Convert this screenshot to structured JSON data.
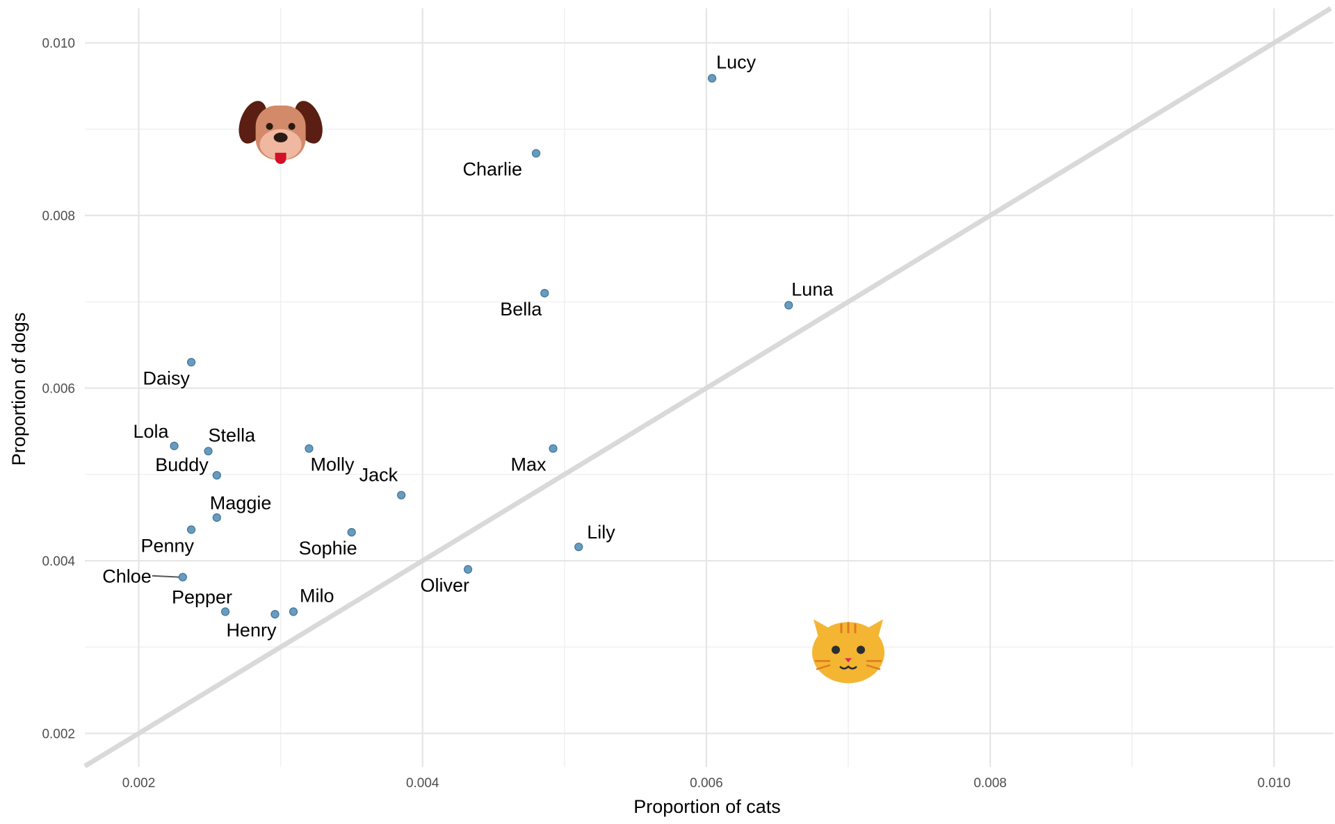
{
  "chart_data": {
    "type": "scatter",
    "title": "",
    "xlabel": "Proportion of cats",
    "ylabel": "Proportion of dogs",
    "xlim": [
      0.00162,
      0.01042
    ],
    "ylim": [
      0.00161,
      0.0104
    ],
    "x_ticks": [
      "0.002",
      "0.004",
      "0.006",
      "0.008",
      "0.010"
    ],
    "y_ticks": [
      "0.002",
      "0.004",
      "0.006",
      "0.008",
      "0.010"
    ],
    "grid": true,
    "reference_line": {
      "type": "identity",
      "label": "",
      "color": "#d9d9d9"
    },
    "point_color": "#5b94b8",
    "icons": [
      {
        "name": "dog-face-icon",
        "glyph": "🐶",
        "x": 0.003,
        "y": 0.009
      },
      {
        "name": "cat-face-icon",
        "glyph": "🐱",
        "x": 0.007,
        "y": 0.003
      }
    ],
    "points": [
      {
        "name": "Lucy",
        "x": 0.00604,
        "y": 0.00959
      },
      {
        "name": "Charlie",
        "x": 0.0048,
        "y": 0.00872
      },
      {
        "name": "Bella",
        "x": 0.00486,
        "y": 0.0071
      },
      {
        "name": "Luna",
        "x": 0.00658,
        "y": 0.00696
      },
      {
        "name": "Daisy",
        "x": 0.00237,
        "y": 0.0063
      },
      {
        "name": "Lola",
        "x": 0.00225,
        "y": 0.00533
      },
      {
        "name": "Stella",
        "x": 0.00249,
        "y": 0.00527
      },
      {
        "name": "Buddy",
        "x": 0.00255,
        "y": 0.00499
      },
      {
        "name": "Molly",
        "x": 0.0032,
        "y": 0.0053
      },
      {
        "name": "Max",
        "x": 0.00492,
        "y": 0.0053
      },
      {
        "name": "Maggie",
        "x": 0.00255,
        "y": 0.0045
      },
      {
        "name": "Jack",
        "x": 0.00385,
        "y": 0.00476
      },
      {
        "name": "Penny",
        "x": 0.00237,
        "y": 0.00436
      },
      {
        "name": "Sophie",
        "x": 0.0035,
        "y": 0.00433
      },
      {
        "name": "Lily",
        "x": 0.0051,
        "y": 0.00416
      },
      {
        "name": "Chloe",
        "x": 0.00231,
        "y": 0.00381
      },
      {
        "name": "Oliver",
        "x": 0.00432,
        "y": 0.0039
      },
      {
        "name": "Pepper",
        "x": 0.00261,
        "y": 0.00341
      },
      {
        "name": "Milo",
        "x": 0.00309,
        "y": 0.00341
      },
      {
        "name": "Henry",
        "x": 0.00296,
        "y": 0.00338
      }
    ]
  }
}
